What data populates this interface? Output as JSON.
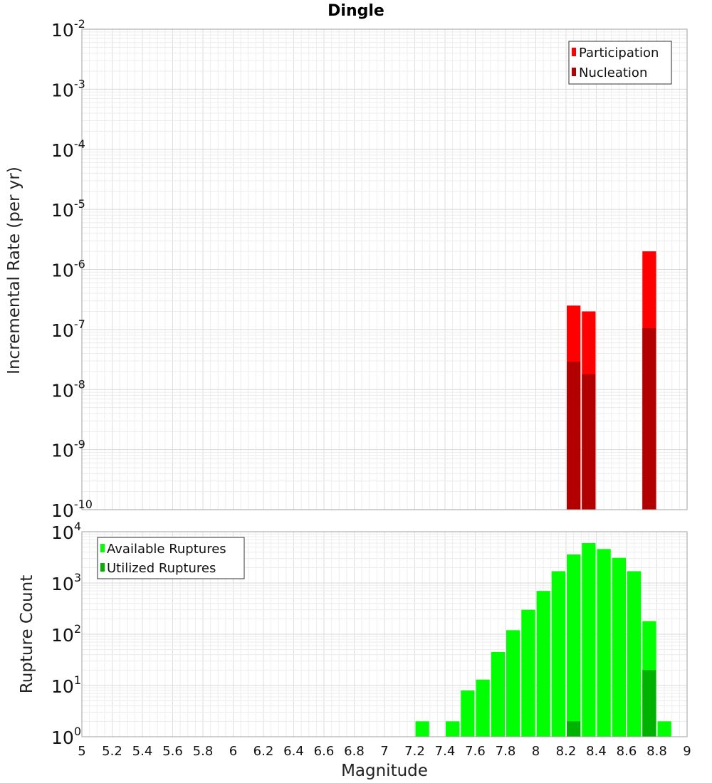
{
  "chart_data": [
    {
      "type": "bar",
      "title": "Dingle",
      "xlabel": "",
      "ylabel": "Incremental Rate (per yr)",
      "yscale": "log",
      "ylim_exp": [
        -10,
        -2
      ],
      "xlim": [
        5,
        9
      ],
      "grid": true,
      "legend_position": "top-right",
      "legend": [
        "Participation",
        "Nucleation"
      ],
      "colors": {
        "Participation": "#ff0000",
        "Nucleation": "#b20000"
      },
      "bin_width": 0.1,
      "series": [
        {
          "name": "Participation",
          "x": [
            8.25,
            8.35,
            8.75
          ],
          "values": [
            2.5e-07,
            2e-07,
            2e-06
          ]
        },
        {
          "name": "Nucleation",
          "x": [
            8.25,
            8.35,
            8.75
          ],
          "values": [
            2.9e-08,
            1.8e-08,
            1.05e-07
          ]
        }
      ]
    },
    {
      "type": "bar",
      "title": "",
      "xlabel": "Magnitude",
      "ylabel": "Rupture Count",
      "yscale": "log",
      "ylim_exp": [
        0,
        4
      ],
      "xlim": [
        5,
        9
      ],
      "xticks": [
        "5",
        "5.2",
        "5.4",
        "5.6",
        "5.8",
        "6",
        "6.2",
        "6.4",
        "6.6",
        "6.8",
        "7",
        "7.2",
        "7.4",
        "7.6",
        "7.8",
        "8",
        "8.2",
        "8.4",
        "8.6",
        "8.8",
        "9"
      ],
      "grid": true,
      "legend_position": "top-left",
      "legend": [
        "Available Ruptures",
        "Utilized Ruptures"
      ],
      "colors": {
        "Available Ruptures": "#00ff00",
        "Utilized Ruptures": "#00b200"
      },
      "bin_width": 0.1,
      "series": [
        {
          "name": "Available Ruptures",
          "x": [
            7.25,
            7.45,
            7.55,
            7.65,
            7.75,
            7.85,
            7.95,
            8.05,
            8.15,
            8.25,
            8.35,
            8.45,
            8.55,
            8.65,
            8.75,
            8.85
          ],
          "values": [
            2,
            2,
            8,
            13,
            45,
            120,
            300,
            700,
            1700,
            3600,
            6000,
            4600,
            3100,
            1700,
            180,
            2
          ]
        },
        {
          "name": "Utilized Ruptures",
          "x": [
            8.25,
            8.35,
            8.75
          ],
          "values": [
            2,
            1,
            20
          ]
        }
      ]
    }
  ]
}
